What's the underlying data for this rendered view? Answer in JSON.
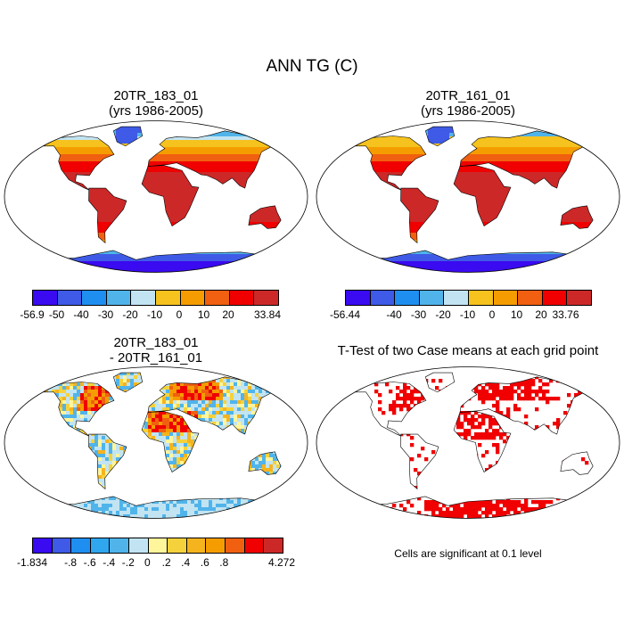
{
  "title": "ANN TG (C)",
  "panels": {
    "p1": {
      "title1": "20TR_183_01",
      "title2": "(yrs 1986-2005)"
    },
    "p2": {
      "title1": "20TR_161_01",
      "title2": "(yrs 1986-2005)"
    },
    "p3": {
      "title1": "20TR_183_01",
      "title2": "- 20TR_161_01"
    },
    "p4": {
      "title1": "T-Test of two Case means at each grid point",
      "note": "Cells are significant at 0.1 level"
    }
  },
  "colorbars": {
    "cb1": {
      "colors": [
        "#3a0af0",
        "#3e5ae6",
        "#1e8ff0",
        "#50b4ea",
        "#c2e4f2",
        "#f5c21e",
        "#f59d00",
        "#f06010",
        "#f00000",
        "#cc2828"
      ],
      "labels": [
        "-56.9",
        "-50",
        "-40",
        "-30",
        "-20",
        "-10",
        "0",
        "10",
        "20",
        "33.84"
      ]
    },
    "cb2": {
      "colors": [
        "#3a0af0",
        "#3e5ae6",
        "#1e8ff0",
        "#50b4ea",
        "#c2e4f2",
        "#f5c21e",
        "#f59d00",
        "#f06010",
        "#f00000",
        "#cc2828"
      ],
      "labels": [
        "-56.44",
        "-40",
        "-30",
        "-20",
        "-10",
        "0",
        "10",
        "20",
        "33.76"
      ]
    },
    "cb3": {
      "colors": [
        "#3a0af0",
        "#3e5ae6",
        "#1e8ff0",
        "#2fa6ee",
        "#50b4ea",
        "#c2e4f2",
        "#fff59a",
        "#f5d23c",
        "#f5b41e",
        "#f59d00",
        "#f06010",
        "#f00000",
        "#cc2828"
      ],
      "labels": [
        "-1.834",
        "-.8",
        "-.6",
        "-.4",
        "-.2",
        "0",
        ".2",
        ".4",
        ".6",
        ".8",
        "4.272"
      ]
    }
  },
  "icons": {
    "map": "world-map-robinson-icon"
  }
}
